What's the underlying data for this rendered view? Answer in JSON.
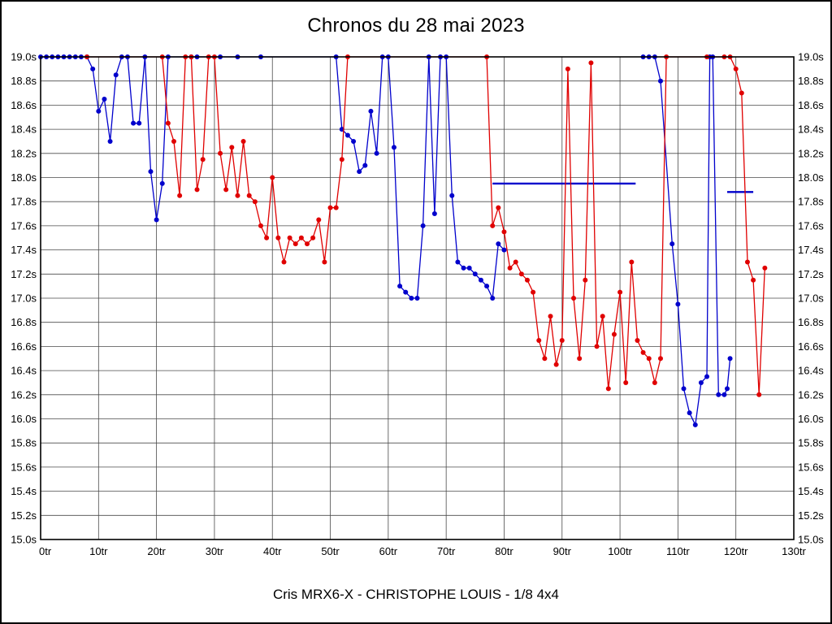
{
  "page": {
    "title": "Chronos du 28 mai 2023",
    "caption": "Cris MRX6-X - CHRISTOPHE LOUIS - 1/8 4x4"
  },
  "chart_data": {
    "type": "line",
    "title": "Chronos du 28 mai 2023",
    "subtitle": "Cris MRX6-X - CHRISTOPHE LOUIS - 1/8 4x4",
    "x_unit": "tr",
    "y_unit": "s",
    "xlim": [
      0,
      130
    ],
    "ylim": [
      15.0,
      19.0
    ],
    "grid": true,
    "grid_color": "#4a4a4a",
    "frame_color": "#000000",
    "x_ticks": [
      {
        "value": 0,
        "label": "0tr"
      },
      {
        "value": 10,
        "label": "10tr"
      },
      {
        "value": 20,
        "label": "20tr"
      },
      {
        "value": 30,
        "label": "30tr"
      },
      {
        "value": 40,
        "label": "40tr"
      },
      {
        "value": 50,
        "label": "50tr"
      },
      {
        "value": 60,
        "label": "60tr"
      },
      {
        "value": 70,
        "label": "70tr"
      },
      {
        "value": 80,
        "label": "80tr"
      },
      {
        "value": 90,
        "label": "90tr"
      },
      {
        "value": 100,
        "label": "100tr"
      },
      {
        "value": 110,
        "label": "110tr"
      },
      {
        "value": 120,
        "label": "120tr"
      },
      {
        "value": 130,
        "label": "130tr"
      }
    ],
    "y_ticks": [
      {
        "value": 15.0,
        "label": "15.0s"
      },
      {
        "value": 15.2,
        "label": "15.2s"
      },
      {
        "value": 15.4,
        "label": "15.4s"
      },
      {
        "value": 15.6,
        "label": "15.6s"
      },
      {
        "value": 15.8,
        "label": "15.8s"
      },
      {
        "value": 16.0,
        "label": "16.0s"
      },
      {
        "value": 16.2,
        "label": "16.2s"
      },
      {
        "value": 16.4,
        "label": "16.4s"
      },
      {
        "value": 16.6,
        "label": "16.6s"
      },
      {
        "value": 16.8,
        "label": "16.8s"
      },
      {
        "value": 17.0,
        "label": "17.0s"
      },
      {
        "value": 17.2,
        "label": "17.2s"
      },
      {
        "value": 17.4,
        "label": "17.4s"
      },
      {
        "value": 17.6,
        "label": "17.6s"
      },
      {
        "value": 17.8,
        "label": "17.8s"
      },
      {
        "value": 18.0,
        "label": "18.0s"
      },
      {
        "value": 18.2,
        "label": "18.2s"
      },
      {
        "value": 18.4,
        "label": "18.4s"
      },
      {
        "value": 18.6,
        "label": "18.6s"
      },
      {
        "value": 18.8,
        "label": "18.8s"
      },
      {
        "value": 19.0,
        "label": "19.0s"
      }
    ],
    "legend": "none",
    "segments": [
      {
        "name": "blue-mean-line-1",
        "color": "#0000cc",
        "x1": 78,
        "x2": 102.7,
        "y": 17.95,
        "width": 2.4
      },
      {
        "name": "blue-mean-line-2",
        "color": "#0000cc",
        "x1": 118.5,
        "x2": 123,
        "y": 17.88,
        "width": 2.4
      }
    ],
    "series": [
      {
        "name": "pilote-bleu",
        "color": "#0000cc",
        "points": [
          [
            0,
            19
          ],
          [
            1,
            19
          ],
          [
            2,
            19
          ],
          [
            3,
            19
          ],
          [
            4,
            19
          ],
          [
            5,
            19
          ],
          [
            6,
            19
          ],
          [
            7,
            19
          ],
          [
            8,
            19
          ],
          [
            9,
            18.9
          ],
          [
            10,
            18.55
          ],
          [
            11,
            18.65
          ],
          [
            12,
            18.3
          ],
          [
            13,
            18.85
          ],
          [
            14,
            19
          ],
          [
            15,
            19
          ],
          [
            16,
            18.45
          ],
          [
            17,
            18.45
          ],
          [
            18,
            19
          ],
          [
            19,
            18.05
          ],
          [
            20,
            17.65
          ],
          [
            21,
            17.95
          ],
          [
            22,
            19
          ],
          [
            26,
            19
          ],
          [
            27,
            19
          ],
          [
            31,
            19
          ],
          [
            34,
            19
          ],
          [
            38,
            19
          ],
          [
            51,
            19
          ],
          [
            52,
            18.4
          ],
          [
            53,
            18.35
          ],
          [
            54,
            18.3
          ],
          [
            55,
            18.05
          ],
          [
            56,
            18.1
          ],
          [
            57,
            18.55
          ],
          [
            58,
            18.2
          ],
          [
            59,
            19
          ],
          [
            60,
            19
          ],
          [
            61,
            18.25
          ],
          [
            62,
            17.1
          ],
          [
            63,
            17.05
          ],
          [
            64,
            17.0
          ],
          [
            65,
            17.0
          ],
          [
            66,
            17.6
          ],
          [
            67,
            19
          ],
          [
            68,
            17.7
          ],
          [
            69,
            19
          ],
          [
            70,
            19
          ],
          [
            71,
            17.85
          ],
          [
            72,
            17.3
          ],
          [
            73,
            17.25
          ],
          [
            74,
            17.25
          ],
          [
            75,
            17.2
          ],
          [
            76,
            17.15
          ],
          [
            77,
            17.1
          ],
          [
            78,
            17.0
          ],
          [
            79,
            17.45
          ],
          [
            80,
            17.4
          ],
          null,
          [
            104,
            19
          ],
          [
            105,
            19
          ],
          [
            106,
            19
          ],
          [
            107,
            18.8
          ],
          [
            109,
            17.45
          ],
          [
            110,
            16.95
          ],
          [
            111,
            16.25
          ],
          [
            112,
            16.05
          ],
          [
            113,
            15.95
          ],
          [
            114,
            16.3
          ],
          [
            115,
            16.35
          ],
          [
            115.5,
            19
          ],
          [
            116,
            19
          ],
          [
            117,
            16.2
          ],
          [
            118,
            16.2
          ],
          [
            118.5,
            16.25
          ],
          [
            119,
            16.5
          ]
        ]
      },
      {
        "name": "pilote-rouge",
        "color": "#e00000",
        "points": [
          [
            8,
            19
          ],
          [
            21,
            19
          ],
          [
            22,
            18.45
          ],
          [
            23,
            18.3
          ],
          [
            24,
            17.85
          ],
          [
            25,
            19
          ],
          [
            26,
            19
          ],
          [
            27,
            17.9
          ],
          [
            28,
            18.15
          ],
          [
            29,
            19
          ],
          [
            30,
            19
          ],
          [
            31,
            18.2
          ],
          [
            32,
            17.9
          ],
          [
            33,
            18.25
          ],
          [
            34,
            17.85
          ],
          [
            35,
            18.3
          ],
          [
            36,
            17.85
          ],
          [
            37,
            17.8
          ],
          [
            38,
            17.6
          ],
          [
            39,
            17.5
          ],
          [
            40,
            18.0
          ],
          [
            41,
            17.5
          ],
          [
            42,
            17.3
          ],
          [
            43,
            17.5
          ],
          [
            44,
            17.45
          ],
          [
            45,
            17.5
          ],
          [
            46,
            17.45
          ],
          [
            47,
            17.5
          ],
          [
            48,
            17.65
          ],
          [
            49,
            17.3
          ],
          [
            50,
            17.75
          ],
          [
            51,
            17.75
          ],
          [
            52,
            18.15
          ],
          [
            53,
            19
          ],
          [
            77,
            19
          ],
          [
            78,
            17.6
          ],
          [
            79,
            17.75
          ],
          [
            80,
            17.55
          ],
          [
            81,
            17.25
          ],
          [
            82,
            17.3
          ],
          [
            83,
            17.2
          ],
          [
            84,
            17.15
          ],
          [
            85,
            17.05
          ],
          [
            86,
            16.65
          ],
          [
            87,
            16.5
          ],
          [
            88,
            16.85
          ],
          [
            89,
            16.45
          ],
          [
            90,
            16.65
          ],
          [
            91,
            18.9
          ],
          [
            92,
            17.0
          ],
          [
            93,
            16.5
          ],
          [
            94,
            17.15
          ],
          [
            95,
            18.95
          ],
          [
            96,
            16.6
          ],
          [
            97,
            16.85
          ],
          [
            98,
            16.25
          ],
          [
            99,
            16.7
          ],
          [
            100,
            17.05
          ],
          [
            101,
            16.3
          ],
          [
            102,
            17.3
          ],
          [
            103,
            16.65
          ],
          [
            104,
            16.55
          ],
          [
            105,
            16.5
          ],
          [
            106,
            16.3
          ],
          [
            107,
            16.5
          ],
          [
            108,
            19
          ],
          [
            115,
            19
          ],
          [
            118,
            19
          ],
          [
            119,
            19
          ],
          [
            120,
            18.9
          ],
          [
            121,
            18.7
          ],
          [
            122,
            17.3
          ],
          [
            123,
            17.15
          ],
          [
            124,
            16.2
          ],
          [
            125,
            17.25
          ]
        ]
      }
    ]
  }
}
